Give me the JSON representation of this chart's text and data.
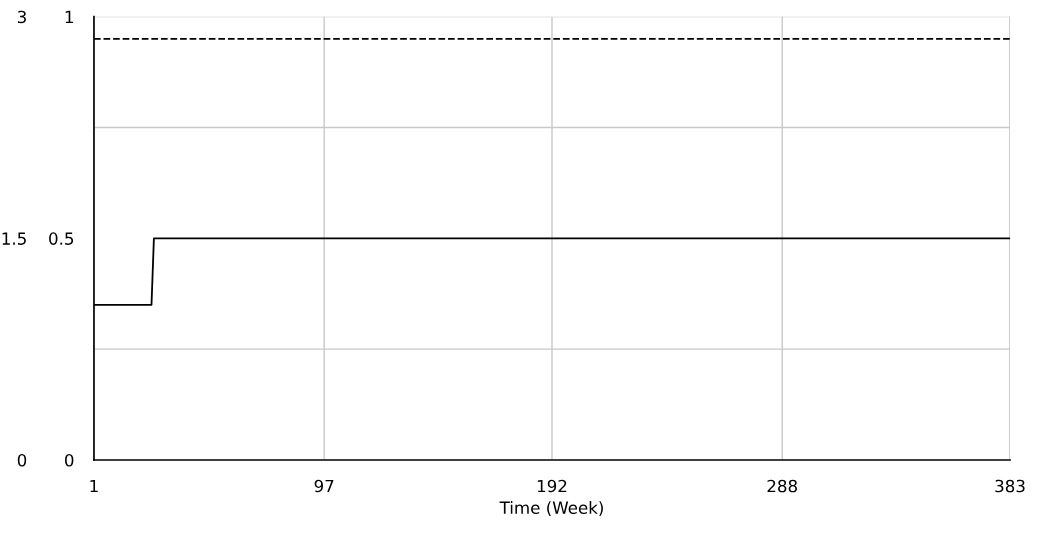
{
  "chart_data": {
    "type": "line",
    "xlabel": "Time (Week)",
    "xlim": [
      1,
      383
    ],
    "xticks": [
      1,
      97,
      192,
      288,
      383
    ],
    "ylim": [
      0,
      1
    ],
    "yticks": [
      0,
      0.5,
      1
    ],
    "y2lim": [
      0,
      3
    ],
    "y2ticks": [
      0,
      1.5,
      3
    ],
    "grid": true,
    "line_style": "solid",
    "series": [
      {
        "color": "#000000",
        "x": [
          1,
          25,
          26,
          383
        ],
        "values": [
          0.35,
          0.35,
          0.5,
          0.5
        ]
      },
      {
        "color": "#000000",
        "line_style": "dashed",
        "x": [
          1,
          383
        ],
        "values": [
          0.95,
          0.95
        ]
      }
    ]
  }
}
